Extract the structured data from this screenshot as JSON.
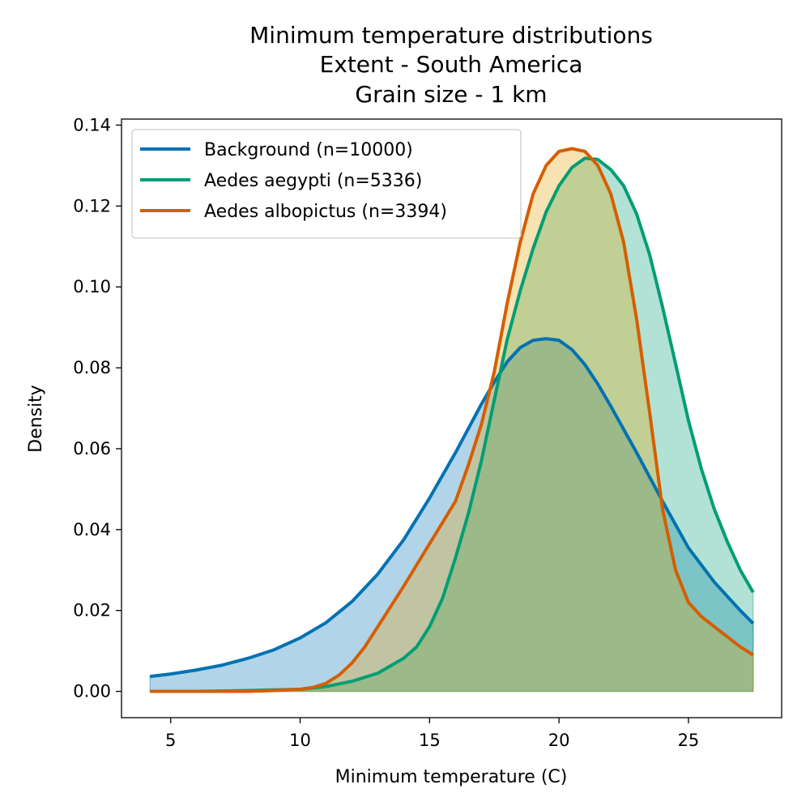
{
  "chart_data": {
    "type": "area",
    "title_lines": [
      "Minimum temperature distributions",
      "Extent - South America",
      "Grain size - 1 km"
    ],
    "xlabel": "Minimum temperature (C)",
    "ylabel": "Density",
    "xlim": [
      3.1,
      28.6
    ],
    "ylim": [
      -0.0065,
      0.1415
    ],
    "xticks": [
      5,
      10,
      15,
      20,
      25
    ],
    "xtick_labels": [
      "5",
      "10",
      "15",
      "20",
      "25"
    ],
    "yticks": [
      0.0,
      0.02,
      0.04,
      0.06,
      0.08,
      0.1,
      0.12,
      0.14
    ],
    "ytick_labels": [
      "0.00",
      "0.02",
      "0.04",
      "0.06",
      "0.08",
      "0.10",
      "0.12",
      "0.14"
    ],
    "grid": false,
    "legend_position": "top-left",
    "series": [
      {
        "name": "Background (n=10000)",
        "color": "#0072b2",
        "fill_color": "#0072b2",
        "fill_opacity": 0.3,
        "x": [
          4.2,
          5,
          6,
          7,
          8,
          9,
          10,
          11,
          12,
          13,
          14,
          15,
          16,
          17,
          17.5,
          18,
          18.5,
          19,
          19.5,
          20,
          20.5,
          21,
          21.5,
          22,
          23,
          24,
          25,
          26,
          27,
          27.5
        ],
        "y": [
          0.0037,
          0.0043,
          0.0053,
          0.0065,
          0.0082,
          0.0103,
          0.0132,
          0.017,
          0.0222,
          0.029,
          0.0375,
          0.0478,
          0.059,
          0.071,
          0.0765,
          0.0815,
          0.085,
          0.0868,
          0.0872,
          0.0868,
          0.0845,
          0.0808,
          0.076,
          0.0705,
          0.059,
          0.047,
          0.0355,
          0.027,
          0.02,
          0.0168
        ]
      },
      {
        "name": "Aedes aegypti (n=5336)",
        "color": "#009e73",
        "fill_color": "#009e73",
        "fill_opacity": 0.3,
        "x": [
          4.2,
          6,
          8,
          10,
          11,
          12,
          13,
          14,
          14.5,
          15,
          15.5,
          16,
          16.5,
          17,
          17.5,
          18,
          18.5,
          19,
          19.5,
          20,
          20.5,
          21,
          21.5,
          22,
          22.5,
          23,
          23.5,
          24,
          24.5,
          25,
          25.5,
          26,
          26.5,
          27,
          27.5
        ],
        "y": [
          0.0,
          0.0,
          0.0002,
          0.0005,
          0.0012,
          0.0025,
          0.0045,
          0.0082,
          0.011,
          0.016,
          0.023,
          0.033,
          0.044,
          0.057,
          0.072,
          0.087,
          0.099,
          0.1095,
          0.1185,
          0.125,
          0.1295,
          0.1318,
          0.1315,
          0.129,
          0.125,
          0.118,
          0.108,
          0.095,
          0.081,
          0.067,
          0.055,
          0.045,
          0.037,
          0.03,
          0.0245
        ]
      },
      {
        "name": "Aedes albopictus (n=3394)",
        "color": "#d55e00",
        "fill_color": "#e69f00",
        "fill_opacity": 0.3,
        "x": [
          4.2,
          6,
          8,
          9,
          10,
          10.5,
          11,
          11.5,
          12,
          12.5,
          13,
          14,
          15,
          16,
          16.5,
          17,
          17.5,
          18,
          18.5,
          19,
          19.5,
          20,
          20.5,
          21,
          21.5,
          22,
          22.5,
          23,
          23.5,
          24,
          24.5,
          25,
          25.5,
          26,
          26.5,
          27,
          27.5
        ],
        "y": [
          0.0,
          0.0,
          0.0,
          0.0002,
          0.0005,
          0.001,
          0.002,
          0.004,
          0.007,
          0.011,
          0.016,
          0.026,
          0.0365,
          0.047,
          0.056,
          0.066,
          0.079,
          0.096,
          0.111,
          0.123,
          0.13,
          0.1335,
          0.1342,
          0.1335,
          0.13,
          0.123,
          0.111,
          0.092,
          0.069,
          0.045,
          0.03,
          0.022,
          0.0185,
          0.016,
          0.0135,
          0.011,
          0.009
        ]
      }
    ]
  }
}
